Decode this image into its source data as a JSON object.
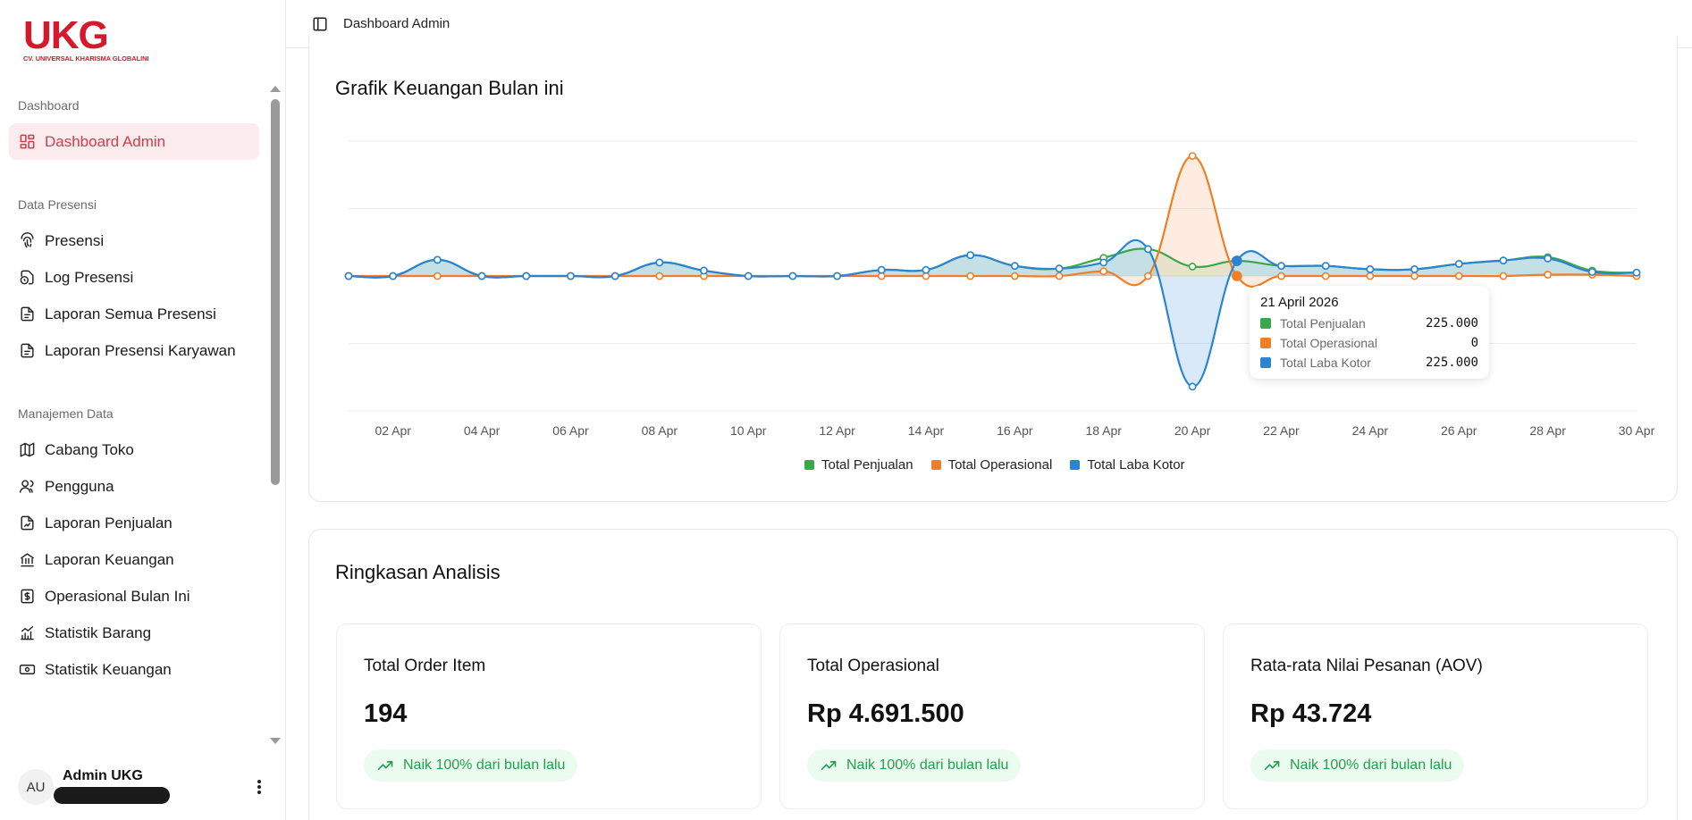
{
  "logo": {
    "text": "UKG",
    "subtitle": "CV. UNIVERSAL KHARISMA GLOBALINDO"
  },
  "header": {
    "title": "Dashboard Admin"
  },
  "sidebar": {
    "groups": [
      {
        "label": "Dashboard",
        "items": [
          {
            "label": "Dashboard Admin",
            "icon": "dashboard-icon",
            "active": true
          }
        ]
      },
      {
        "label": "Data Presensi",
        "items": [
          {
            "label": "Presensi",
            "icon": "fingerprint-icon"
          },
          {
            "label": "Log Presensi",
            "icon": "file-clock-icon"
          },
          {
            "label": "Laporan Semua Presensi",
            "icon": "file-icon"
          },
          {
            "label": "Laporan Presensi Karyawan",
            "icon": "file-icon"
          }
        ]
      },
      {
        "label": "Manajemen Data",
        "items": [
          {
            "label": "Cabang Toko",
            "icon": "map-icon"
          },
          {
            "label": "Pengguna",
            "icon": "users-icon"
          },
          {
            "label": "Laporan Penjualan",
            "icon": "file-chart-icon"
          },
          {
            "label": "Laporan Keuangan",
            "icon": "bank-icon"
          },
          {
            "label": "Operasional Bulan Ini",
            "icon": "dollar-receipt-icon"
          },
          {
            "label": "Statistik Barang",
            "icon": "bar-chart-icon"
          },
          {
            "label": "Statistik Keuangan",
            "icon": "banknote-icon"
          }
        ]
      }
    ]
  },
  "user": {
    "initials": "AU",
    "name": "Admin UKG"
  },
  "chart_section": {
    "title": "Grafik Keuangan Bulan ini"
  },
  "chart_data": {
    "type": "area",
    "title": "Grafik Keuangan Bulan ini",
    "x": [
      "01 Apr",
      "02 Apr",
      "03 Apr",
      "04 Apr",
      "05 Apr",
      "06 Apr",
      "07 Apr",
      "08 Apr",
      "09 Apr",
      "10 Apr",
      "11 Apr",
      "12 Apr",
      "13 Apr",
      "14 Apr",
      "15 Apr",
      "16 Apr",
      "17 Apr",
      "18 Apr",
      "19 Apr",
      "20 Apr",
      "21 Apr",
      "22 Apr",
      "23 Apr",
      "24 Apr",
      "25 Apr",
      "26 Apr",
      "27 Apr",
      "28 Apr",
      "29 Apr",
      "30 Apr"
    ],
    "tick_labels": [
      "02 Apr",
      "04 Apr",
      "06 Apr",
      "08 Apr",
      "10 Apr",
      "12 Apr",
      "14 Apr",
      "16 Apr",
      "18 Apr",
      "20 Apr",
      "22 Apr",
      "24 Apr",
      "26 Apr",
      "28 Apr",
      "30 Apr"
    ],
    "ylim": [
      -2000000,
      2000000
    ],
    "series": [
      {
        "name": "Total Penjualan",
        "color": "#3aa84a",
        "values": [
          0,
          0,
          240000,
          0,
          0,
          0,
          0,
          200000,
          80000,
          0,
          0,
          0,
          90000,
          90000,
          310000,
          150000,
          110000,
          270000,
          400000,
          140000,
          225000,
          150000,
          150000,
          100000,
          100000,
          180000,
          230000,
          280000,
          80000,
          50000
        ]
      },
      {
        "name": "Total Operasional",
        "color": "#f07e26",
        "values": [
          0,
          0,
          0,
          0,
          0,
          0,
          0,
          0,
          0,
          0,
          0,
          0,
          0,
          0,
          0,
          0,
          0,
          70000,
          0,
          1780000,
          0,
          0,
          0,
          0,
          0,
          0,
          0,
          20000,
          20000,
          0
        ]
      },
      {
        "name": "Total Laba Kotor",
        "color": "#2a84d2",
        "values": [
          0,
          0,
          240000,
          0,
          0,
          0,
          0,
          200000,
          80000,
          0,
          0,
          0,
          90000,
          90000,
          310000,
          150000,
          110000,
          200000,
          400000,
          -1640000,
          225000,
          150000,
          150000,
          100000,
          100000,
          180000,
          230000,
          260000,
          60000,
          50000
        ]
      }
    ],
    "legend": "bottom",
    "grid": true
  },
  "tooltip": {
    "date": "21 April 2026",
    "rows": [
      {
        "label": "Total Penjualan",
        "value": "225.000",
        "color": "#3aa84a"
      },
      {
        "label": "Total Operasional",
        "value": "0",
        "color": "#f07e26"
      },
      {
        "label": "Total Laba Kotor",
        "value": "225.000",
        "color": "#2a84d2"
      }
    ]
  },
  "summary": {
    "title": "Ringkasan Analisis",
    "stats": [
      {
        "label": "Total Order Item",
        "value": "194",
        "change": "Naik 100% dari bulan lalu"
      },
      {
        "label": "Total Operasional",
        "value": "Rp 4.691.500",
        "change": "Naik 100% dari bulan lalu"
      },
      {
        "label": "Rata-rata Nilai Pesanan (AOV)",
        "value": "Rp 43.724",
        "change": "Naik 100% dari bulan lalu"
      }
    ]
  }
}
